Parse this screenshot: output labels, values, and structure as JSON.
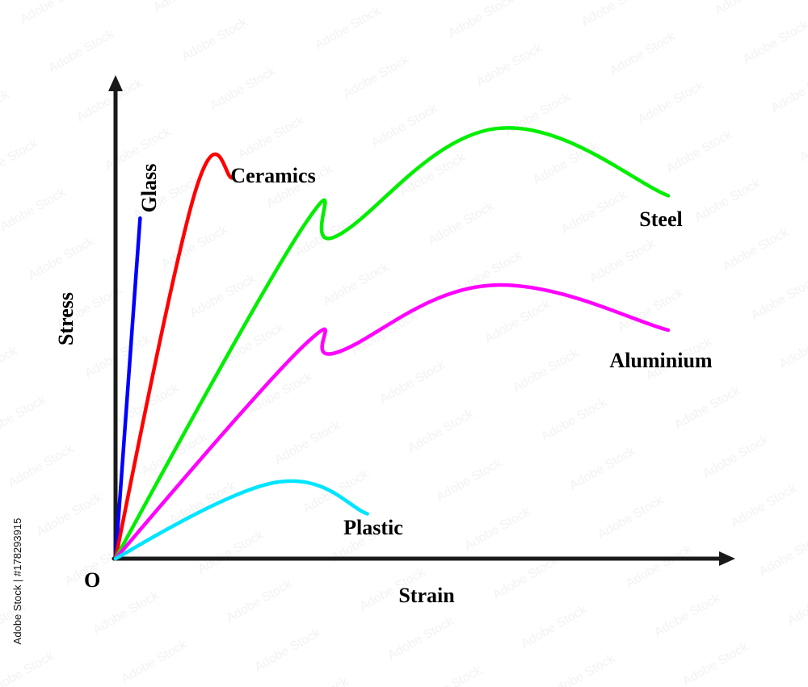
{
  "chart_data": {
    "type": "line",
    "xlabel": "Strain",
    "ylabel": "Stress",
    "origin_label": "O",
    "series": [
      {
        "name": "Glass",
        "color": "#0000ff",
        "points": [
          [
            0,
            0
          ],
          [
            0.04,
            0.76
          ]
        ]
      },
      {
        "name": "Ceramics",
        "color": "#ff0000",
        "points": [
          [
            0,
            0
          ],
          [
            0.13,
            0.82
          ],
          [
            0.19,
            0.85
          ]
        ]
      },
      {
        "name": "Steel",
        "color": "#00ee00",
        "points": [
          [
            0,
            0
          ],
          [
            0.31,
            0.75
          ],
          [
            0.36,
            0.72
          ],
          [
            0.62,
            0.96
          ],
          [
            0.9,
            0.81
          ]
        ]
      },
      {
        "name": "Aluminium",
        "color": "#ff00ff",
        "points": [
          [
            0,
            0
          ],
          [
            0.31,
            0.48
          ],
          [
            0.36,
            0.46
          ],
          [
            0.61,
            0.61
          ],
          [
            0.9,
            0.51
          ]
        ]
      },
      {
        "name": "Plastic",
        "color": "#00e5ff",
        "points": [
          [
            0,
            0
          ],
          [
            0.26,
            0.17
          ],
          [
            0.41,
            0.1
          ]
        ]
      }
    ]
  },
  "watermark": {
    "credit": "Adobe Stock | #178293915"
  }
}
